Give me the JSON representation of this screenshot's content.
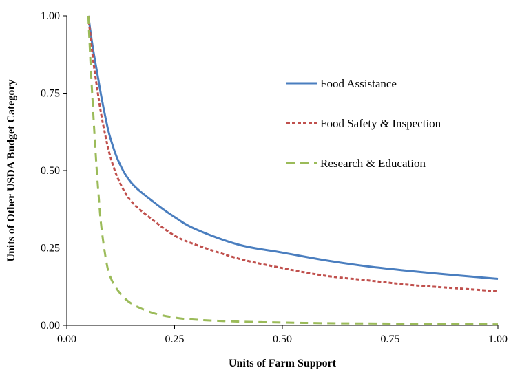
{
  "chart_data": {
    "type": "line",
    "title": "",
    "xlabel": "Units of Farm Support",
    "ylabel": "Units of Other USDA Budget Category",
    "xlim": [
      0,
      1
    ],
    "ylim": [
      0,
      1
    ],
    "x_ticks": [
      "0.00",
      "0.25",
      "0.50",
      "0.75",
      "1.00"
    ],
    "y_ticks": [
      "0.00",
      "0.25",
      "0.50",
      "0.75",
      "1.00"
    ],
    "grid": false,
    "legend_position": "right",
    "series": [
      {
        "name": "Food Assistance",
        "color": "#4a7ebf",
        "style": "solid",
        "x": [
          0.05,
          0.06,
          0.07,
          0.08,
          0.09,
          0.1,
          0.12,
          0.15,
          0.2,
          0.25,
          0.3,
          0.4,
          0.5,
          0.6,
          0.7,
          0.8,
          0.9,
          1.0
        ],
        "y": [
          1.0,
          0.9,
          0.82,
          0.74,
          0.67,
          0.61,
          0.53,
          0.46,
          0.4,
          0.35,
          0.31,
          0.26,
          0.235,
          0.21,
          0.19,
          0.175,
          0.162,
          0.15
        ]
      },
      {
        "name": "Food Safety & Inspection",
        "color": "#c0504d",
        "style": "dotted",
        "x": [
          0.05,
          0.06,
          0.07,
          0.08,
          0.09,
          0.1,
          0.12,
          0.15,
          0.2,
          0.25,
          0.3,
          0.4,
          0.5,
          0.6,
          0.7,
          0.8,
          0.9,
          1.0
        ],
        "y": [
          1.0,
          0.87,
          0.77,
          0.68,
          0.61,
          0.55,
          0.47,
          0.4,
          0.34,
          0.29,
          0.26,
          0.215,
          0.185,
          0.16,
          0.145,
          0.13,
          0.12,
          0.11
        ]
      },
      {
        "name": "Research & Education",
        "color": "#9bbb59",
        "style": "dashed",
        "x": [
          0.05,
          0.055,
          0.06,
          0.065,
          0.07,
          0.075,
          0.08,
          0.09,
          0.1,
          0.12,
          0.15,
          0.2,
          0.25,
          0.3,
          0.4,
          0.5,
          0.6,
          0.7,
          0.8,
          0.9,
          1.0
        ],
        "y": [
          1.0,
          0.85,
          0.72,
          0.6,
          0.49,
          0.4,
          0.32,
          0.22,
          0.16,
          0.11,
          0.07,
          0.04,
          0.025,
          0.018,
          0.012,
          0.009,
          0.007,
          0.006,
          0.005,
          0.004,
          0.003
        ]
      }
    ]
  }
}
